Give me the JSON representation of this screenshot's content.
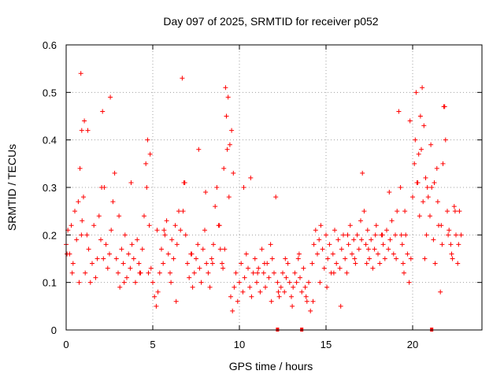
{
  "chart_data": {
    "type": "scatter",
    "title": "Day 097 of 2025, SRMTID for receiver p052",
    "xlabel": "GPS time / hours",
    "ylabel": "SRMTID / TECUs",
    "xlim": [
      0,
      24
    ],
    "ylim": [
      0,
      0.6
    ],
    "xticks": [
      0,
      5,
      10,
      15,
      20
    ],
    "xtick_labels": [
      "0",
      "5",
      "10",
      "15",
      "20"
    ],
    "yticks": [
      0,
      0.1,
      0.2,
      0.3,
      0.4,
      0.5,
      0.6
    ],
    "ytick_labels": [
      "0",
      "0.1",
      "0.2",
      "0.3",
      "0.4",
      "0.5",
      "0.6"
    ],
    "grid": true,
    "marker": "+",
    "color": "#ff0000",
    "series": [
      {
        "name": "SRMTID",
        "x": [
          0.0,
          0.1,
          0.2,
          0.3,
          0.4,
          0.5,
          0.6,
          0.7,
          0.8,
          0.85,
          0.9,
          1.0,
          1.1,
          1.2,
          1.3,
          1.4,
          1.5,
          1.6,
          1.7,
          1.8,
          1.9,
          2.0,
          2.1,
          2.2,
          2.3,
          2.4,
          2.5,
          2.6,
          2.7,
          2.8,
          2.9,
          3.0,
          3.1,
          3.2,
          3.3,
          3.4,
          3.5,
          3.6,
          3.7,
          3.8,
          3.9,
          4.0,
          4.1,
          4.2,
          4.3,
          4.4,
          4.5,
          4.6,
          4.7,
          4.8,
          4.9,
          5.0,
          5.1,
          5.2,
          5.3,
          5.4,
          5.5,
          5.6,
          5.7,
          5.8,
          5.9,
          6.0,
          6.1,
          6.2,
          6.3,
          6.4,
          6.5,
          6.6,
          6.7,
          6.8,
          6.9,
          7.0,
          7.1,
          7.2,
          7.3,
          7.4,
          7.5,
          7.6,
          7.7,
          7.8,
          7.9,
          8.0,
          8.1,
          8.2,
          8.3,
          8.4,
          8.5,
          8.6,
          8.7,
          8.8,
          8.9,
          9.0,
          9.1,
          9.2,
          9.3,
          9.4,
          9.5,
          9.6,
          9.7,
          9.8,
          9.9,
          10.0,
          10.1,
          10.2,
          10.3,
          10.4,
          10.5,
          10.6,
          10.7,
          10.8,
          10.9,
          11.0,
          11.1,
          11.2,
          11.3,
          11.4,
          11.5,
          11.6,
          11.7,
          11.8,
          11.9,
          12.0,
          12.1,
          12.2,
          12.3,
          12.4,
          12.5,
          12.6,
          12.7,
          12.8,
          12.9,
          13.0,
          13.1,
          13.2,
          13.3,
          13.4,
          13.5,
          13.6,
          13.7,
          13.8,
          13.9,
          14.0,
          14.1,
          14.2,
          14.3,
          14.4,
          14.5,
          14.6,
          14.7,
          14.8,
          14.9,
          15.0,
          15.1,
          15.2,
          15.3,
          15.4,
          15.5,
          15.6,
          15.7,
          15.8,
          15.9,
          16.0,
          16.1,
          16.2,
          16.3,
          16.4,
          16.5,
          16.6,
          16.7,
          16.8,
          16.9,
          17.0,
          17.1,
          17.2,
          17.3,
          17.4,
          17.5,
          17.6,
          17.7,
          17.8,
          17.9,
          18.0,
          18.1,
          18.2,
          18.3,
          18.4,
          18.5,
          18.6,
          18.7,
          18.8,
          18.9,
          19.0,
          19.1,
          19.2,
          19.3,
          19.4,
          19.5,
          19.6,
          19.7,
          19.8,
          19.9,
          20.0,
          20.1,
          20.2,
          20.3,
          20.4,
          20.5,
          20.6,
          20.7,
          20.8,
          20.9,
          21.0,
          21.1,
          21.2,
          21.3,
          21.4,
          21.5,
          21.6,
          21.7,
          21.8,
          21.9,
          22.0,
          22.1,
          22.2,
          22.3,
          22.4,
          22.5,
          22.6,
          22.7,
          22.8,
          0.05,
          0.35,
          0.75,
          0.88,
          0.92,
          1.05,
          1.25,
          2.05,
          2.15,
          2.55,
          3.05,
          3.35,
          3.75,
          4.25,
          4.65,
          4.75,
          4.85,
          5.25,
          5.65,
          6.05,
          6.35,
          6.75,
          6.85,
          7.25,
          7.65,
          8.05,
          8.45,
          8.85,
          9.05,
          9.15,
          9.25,
          9.35,
          9.45,
          9.55,
          9.65,
          10.25,
          10.65,
          11.05,
          11.45,
          11.85,
          12.25,
          12.65,
          13.05,
          13.45,
          13.85,
          14.25,
          14.65,
          15.05,
          15.45,
          15.85,
          16.25,
          16.65,
          17.05,
          17.35,
          17.45,
          17.85,
          18.25,
          18.65,
          19.05,
          19.35,
          19.45,
          19.55,
          19.85,
          20.15,
          20.25,
          20.35,
          20.45,
          20.55,
          20.65,
          20.75,
          20.85,
          21.05,
          21.25,
          21.45,
          21.65,
          21.75,
          21.85,
          22.05,
          22.25,
          22.45,
          22.65
        ],
        "y": [
          0.18,
          0.21,
          0.16,
          0.22,
          0.14,
          0.25,
          0.19,
          0.27,
          0.34,
          0.54,
          0.42,
          0.28,
          0.12,
          0.2,
          0.17,
          0.1,
          0.14,
          0.22,
          0.11,
          0.15,
          0.24,
          0.19,
          0.46,
          0.3,
          0.18,
          0.13,
          0.16,
          0.21,
          0.27,
          0.33,
          0.15,
          0.12,
          0.09,
          0.17,
          0.14,
          0.2,
          0.11,
          0.16,
          0.13,
          0.18,
          0.15,
          0.1,
          0.19,
          0.14,
          0.12,
          0.17,
          0.24,
          0.35,
          0.4,
          0.22,
          0.13,
          0.1,
          0.07,
          0.05,
          0.08,
          0.12,
          0.17,
          0.14,
          0.2,
          0.23,
          0.16,
          0.12,
          0.19,
          0.15,
          0.22,
          0.18,
          0.25,
          0.21,
          0.53,
          0.31,
          0.2,
          0.14,
          0.11,
          0.16,
          0.09,
          0.12,
          0.15,
          0.18,
          0.13,
          0.1,
          0.17,
          0.21,
          0.14,
          0.12,
          0.09,
          0.15,
          0.18,
          0.26,
          0.3,
          0.22,
          0.17,
          0.14,
          0.34,
          0.51,
          0.38,
          0.28,
          0.07,
          0.04,
          0.09,
          0.12,
          0.06,
          0.1,
          0.14,
          0.08,
          0.11,
          0.16,
          0.13,
          0.09,
          0.07,
          0.12,
          0.15,
          0.1,
          0.13,
          0.08,
          0.17,
          0.12,
          0.09,
          0.14,
          0.11,
          0.18,
          0.15,
          0.12,
          0.28,
          0.1,
          0.07,
          0.09,
          0.12,
          0.08,
          0.11,
          0.14,
          0.1,
          0.07,
          0.09,
          0.12,
          0.1,
          0.15,
          0.11,
          0.08,
          0.13,
          0.09,
          0.06,
          0.1,
          0.04,
          0.14,
          0.18,
          0.21,
          0.16,
          0.19,
          0.22,
          0.17,
          0.13,
          0.2,
          0.15,
          0.18,
          0.12,
          0.16,
          0.21,
          0.14,
          0.19,
          0.13,
          0.17,
          0.2,
          0.15,
          0.12,
          0.18,
          0.22,
          0.16,
          0.19,
          0.14,
          0.2,
          0.17,
          0.23,
          0.33,
          0.25,
          0.18,
          0.21,
          0.15,
          0.19,
          0.13,
          0.17,
          0.22,
          0.16,
          0.14,
          0.2,
          0.18,
          0.15,
          0.21,
          0.17,
          0.19,
          0.23,
          0.16,
          0.2,
          0.25,
          0.46,
          0.3,
          0.18,
          0.12,
          0.2,
          0.16,
          0.1,
          0.15,
          0.28,
          0.35,
          0.5,
          0.31,
          0.24,
          0.38,
          0.27,
          0.15,
          0.2,
          0.28,
          0.24,
          0.3,
          0.19,
          0.14,
          0.34,
          0.22,
          0.08,
          0.18,
          0.47,
          0.4,
          0.25,
          0.21,
          0.18,
          0.15,
          0.26,
          0.2,
          0.14,
          0.25,
          0.2,
          0.16,
          0.12,
          0.1,
          0.2,
          0.23,
          0.44,
          0.42,
          0.3,
          0.15,
          0.49,
          0.24,
          0.1,
          0.31,
          0.12,
          0.3,
          0.12,
          0.37,
          0.21,
          0.21,
          0.1,
          0.06,
          0.25,
          0.31,
          0.16,
          0.38,
          0.29,
          0.14,
          0.22,
          0.13,
          0.17,
          0.45,
          0.49,
          0.39,
          0.42,
          0.33,
          0.3,
          0.32,
          0.12,
          0.14,
          0.06,
          0.08,
          0.15,
          0.05,
          0.16,
          0.07,
          0.06,
          0.1,
          0.09,
          0.12,
          0.05,
          0.2,
          0.15,
          0.19,
          0.14,
          0.17,
          0.2,
          0.2,
          0.29,
          0.15,
          0.2,
          0.14,
          0.25,
          0.44,
          0.4,
          0.31,
          0.37,
          0.45,
          0.51,
          0.43,
          0.32,
          0.3,
          0.39,
          0.31,
          0.27,
          0.22,
          0.35,
          0.47,
          0.2,
          0.16,
          0.25,
          0.18
        ],
        "zero_markers_x": [
          12.2,
          13.6,
          21.1
        ]
      }
    ]
  }
}
